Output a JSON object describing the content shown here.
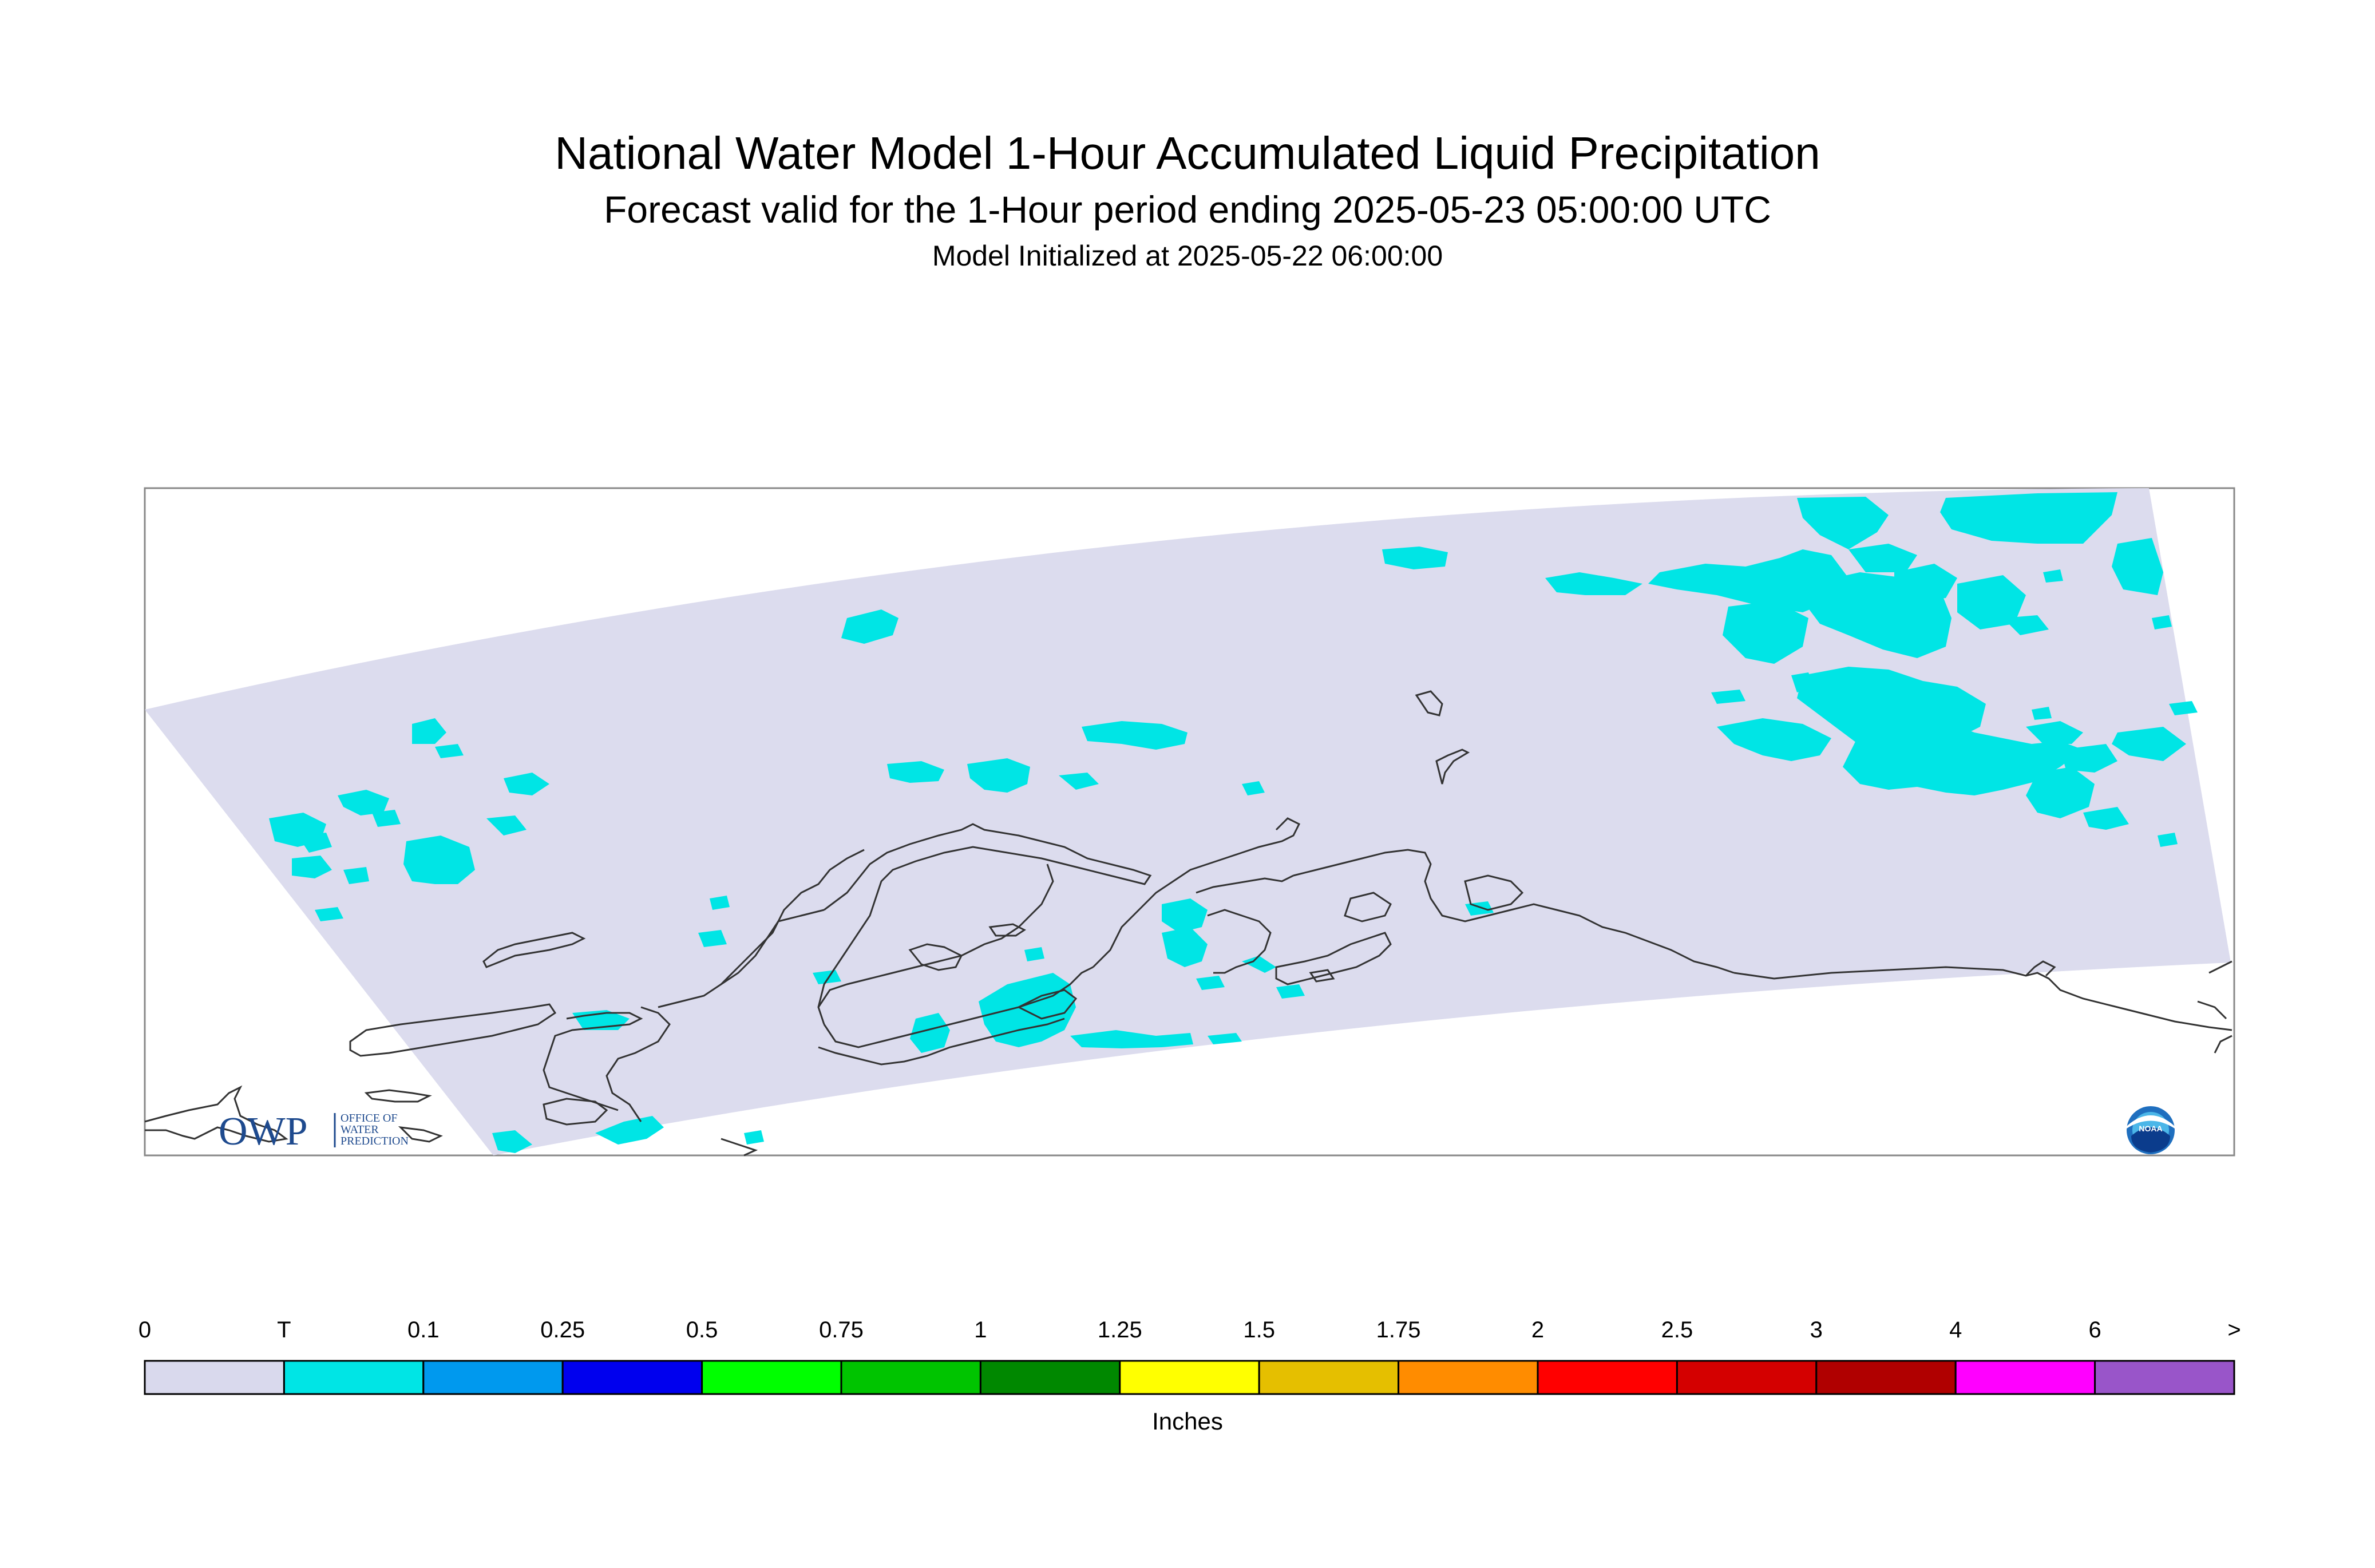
{
  "title": "National Water Model 1-Hour Accumulated Liquid Precipitation",
  "subtitle": "Forecast valid for the 1-Hour period ending 2025-05-23 05:00:00 UTC",
  "init_line": "Model Initialized at 2025-05-22 06:00:00",
  "logo_owp": {
    "mark": "OWP",
    "text_lines": [
      "OFFICE OF",
      "WATER",
      "PREDICTION"
    ]
  },
  "logo_noaa": "NOAA",
  "legend": {
    "units": "Inches",
    "tick_labels": [
      "0",
      "T",
      "0.1",
      "0.25",
      "0.5",
      "0.75",
      "1",
      "1.25",
      "1.5",
      "1.75",
      "2",
      "2.5",
      "3",
      "4",
      "6",
      ">"
    ],
    "colors": [
      "#d9d9ed",
      "#00e5e5",
      "#0099ee",
      "#0000ee",
      "#00ff00",
      "#00c400",
      "#008800",
      "#ffff00",
      "#e5bf00",
      "#ff8c00",
      "#ff0000",
      "#d40000",
      "#b00000",
      "#ff00ff",
      "#9955c9"
    ]
  },
  "map_colors": {
    "domain_fill": "#dcdcee",
    "trace_precip": "#00e5e5",
    "coastline": "#333333",
    "frame": "#888888"
  }
}
